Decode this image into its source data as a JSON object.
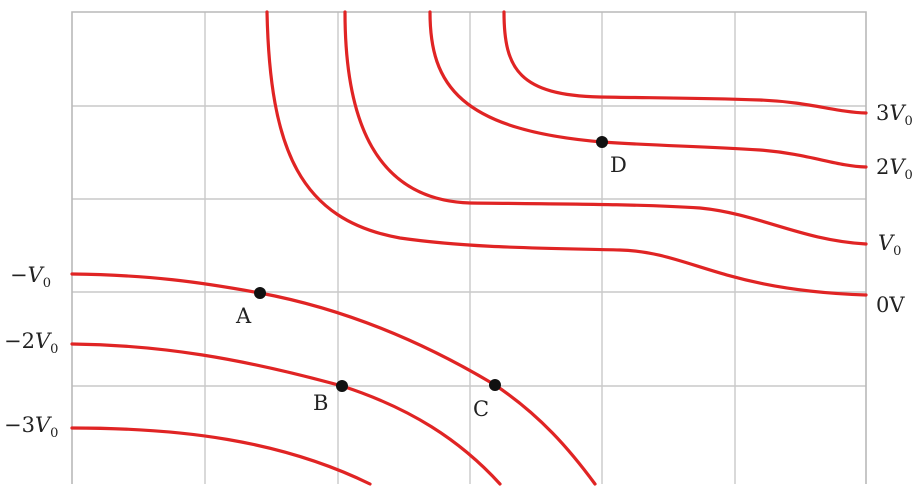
{
  "figure": {
    "colors": {
      "equipotential": "#e02424",
      "grid": "#c9c9c9",
      "point": "#111111",
      "text": "#222222"
    },
    "grid": true,
    "equipotentials": [
      {
        "id": "3v0",
        "label_coef": "3",
        "label_sym": "V",
        "label_sub": "0"
      },
      {
        "id": "2v0",
        "label_coef": "2",
        "label_sym": "V",
        "label_sub": "0"
      },
      {
        "id": "v0",
        "label_coef": "",
        "label_sym": "V",
        "label_sub": "0"
      },
      {
        "id": "0v",
        "label_coef": "0V",
        "label_sym": "",
        "label_sub": ""
      },
      {
        "id": "m1v0",
        "label_coef": "−",
        "label_sym": "V",
        "label_sub": "0"
      },
      {
        "id": "m2v0",
        "label_coef": "−2",
        "label_sym": "V",
        "label_sub": "0"
      },
      {
        "id": "m3v0",
        "label_coef": "−3",
        "label_sym": "V",
        "label_sub": "0"
      }
    ],
    "points": [
      {
        "id": "A",
        "label": "A"
      },
      {
        "id": "B",
        "label": "B"
      },
      {
        "id": "C",
        "label": "C"
      },
      {
        "id": "D",
        "label": "D"
      }
    ]
  }
}
